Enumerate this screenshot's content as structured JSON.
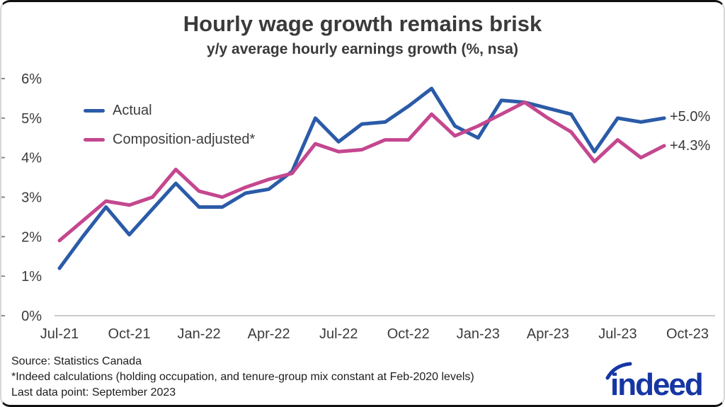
{
  "header": {
    "title": "Hourly wage growth remains brisk",
    "subtitle": "y/y average hourly earnings growth (%, nsa)"
  },
  "legend": {
    "items": [
      {
        "label": "Actual",
        "color": "#2b5ba8"
      },
      {
        "label": "Composition-adjusted*",
        "color": "#c4478f"
      }
    ]
  },
  "end_labels": {
    "actual": "+5.0%",
    "adjusted": "+4.3%"
  },
  "footer": {
    "line1": "Source: Statistics Canada",
    "line2": "*Indeed calculations (holding occupation, and tenure-group mix constant at Feb-2020 levels)",
    "line3": "Last data point: September 2023"
  },
  "logo": {
    "text": "indeed",
    "color": "#1636a4"
  },
  "chart_data": {
    "type": "line",
    "title": "Hourly wage growth remains brisk",
    "subtitle": "y/y average hourly earnings growth (%, nsa)",
    "months": [
      "Jul-21",
      "Aug-21",
      "Sep-21",
      "Oct-21",
      "Nov-21",
      "Dec-21",
      "Jan-22",
      "Feb-22",
      "Mar-22",
      "Apr-22",
      "May-22",
      "Jun-22",
      "Jul-22",
      "Aug-22",
      "Sep-22",
      "Oct-22",
      "Nov-22",
      "Dec-22",
      "Jan-23",
      "Feb-23",
      "Mar-23",
      "Apr-23",
      "May-23",
      "Jun-23",
      "Jul-23",
      "Aug-23",
      "Sep-23"
    ],
    "series": [
      {
        "name": "Actual",
        "color": "#2b5ba8",
        "values": [
          1.2,
          2.0,
          2.75,
          2.05,
          2.7,
          3.35,
          2.75,
          2.75,
          3.1,
          3.2,
          3.65,
          5.0,
          4.4,
          4.85,
          4.9,
          5.3,
          5.75,
          4.8,
          4.5,
          5.45,
          5.4,
          5.25,
          5.1,
          4.15,
          5.0,
          4.9,
          5.0
        ]
      },
      {
        "name": "Composition-adjusted*",
        "color": "#c4478f",
        "values": [
          1.9,
          2.4,
          2.9,
          2.8,
          3.0,
          3.7,
          3.15,
          3.0,
          3.25,
          3.45,
          3.6,
          4.35,
          4.15,
          4.2,
          4.45,
          4.45,
          5.1,
          4.55,
          4.8,
          5.1,
          5.4,
          5.0,
          4.65,
          3.9,
          4.45,
          4.0,
          4.3
        ]
      }
    ],
    "x_tick_labels": [
      "Jul-21",
      "Oct-21",
      "Jan-22",
      "Apr-22",
      "Jul-22",
      "Oct-22",
      "Jan-23",
      "Apr-23",
      "Jul-23",
      "Oct-23"
    ],
    "x_tick_every": 3,
    "y_tick_labels": [
      "0%",
      "1%",
      "2%",
      "3%",
      "4%",
      "5%",
      "6%"
    ],
    "ylim": [
      0,
      6
    ],
    "grid": "baseline-only",
    "legend_position": "top-left",
    "last_point_labels": {
      "Actual": "+5.0%",
      "Composition-adjusted*": "+4.3%"
    }
  }
}
